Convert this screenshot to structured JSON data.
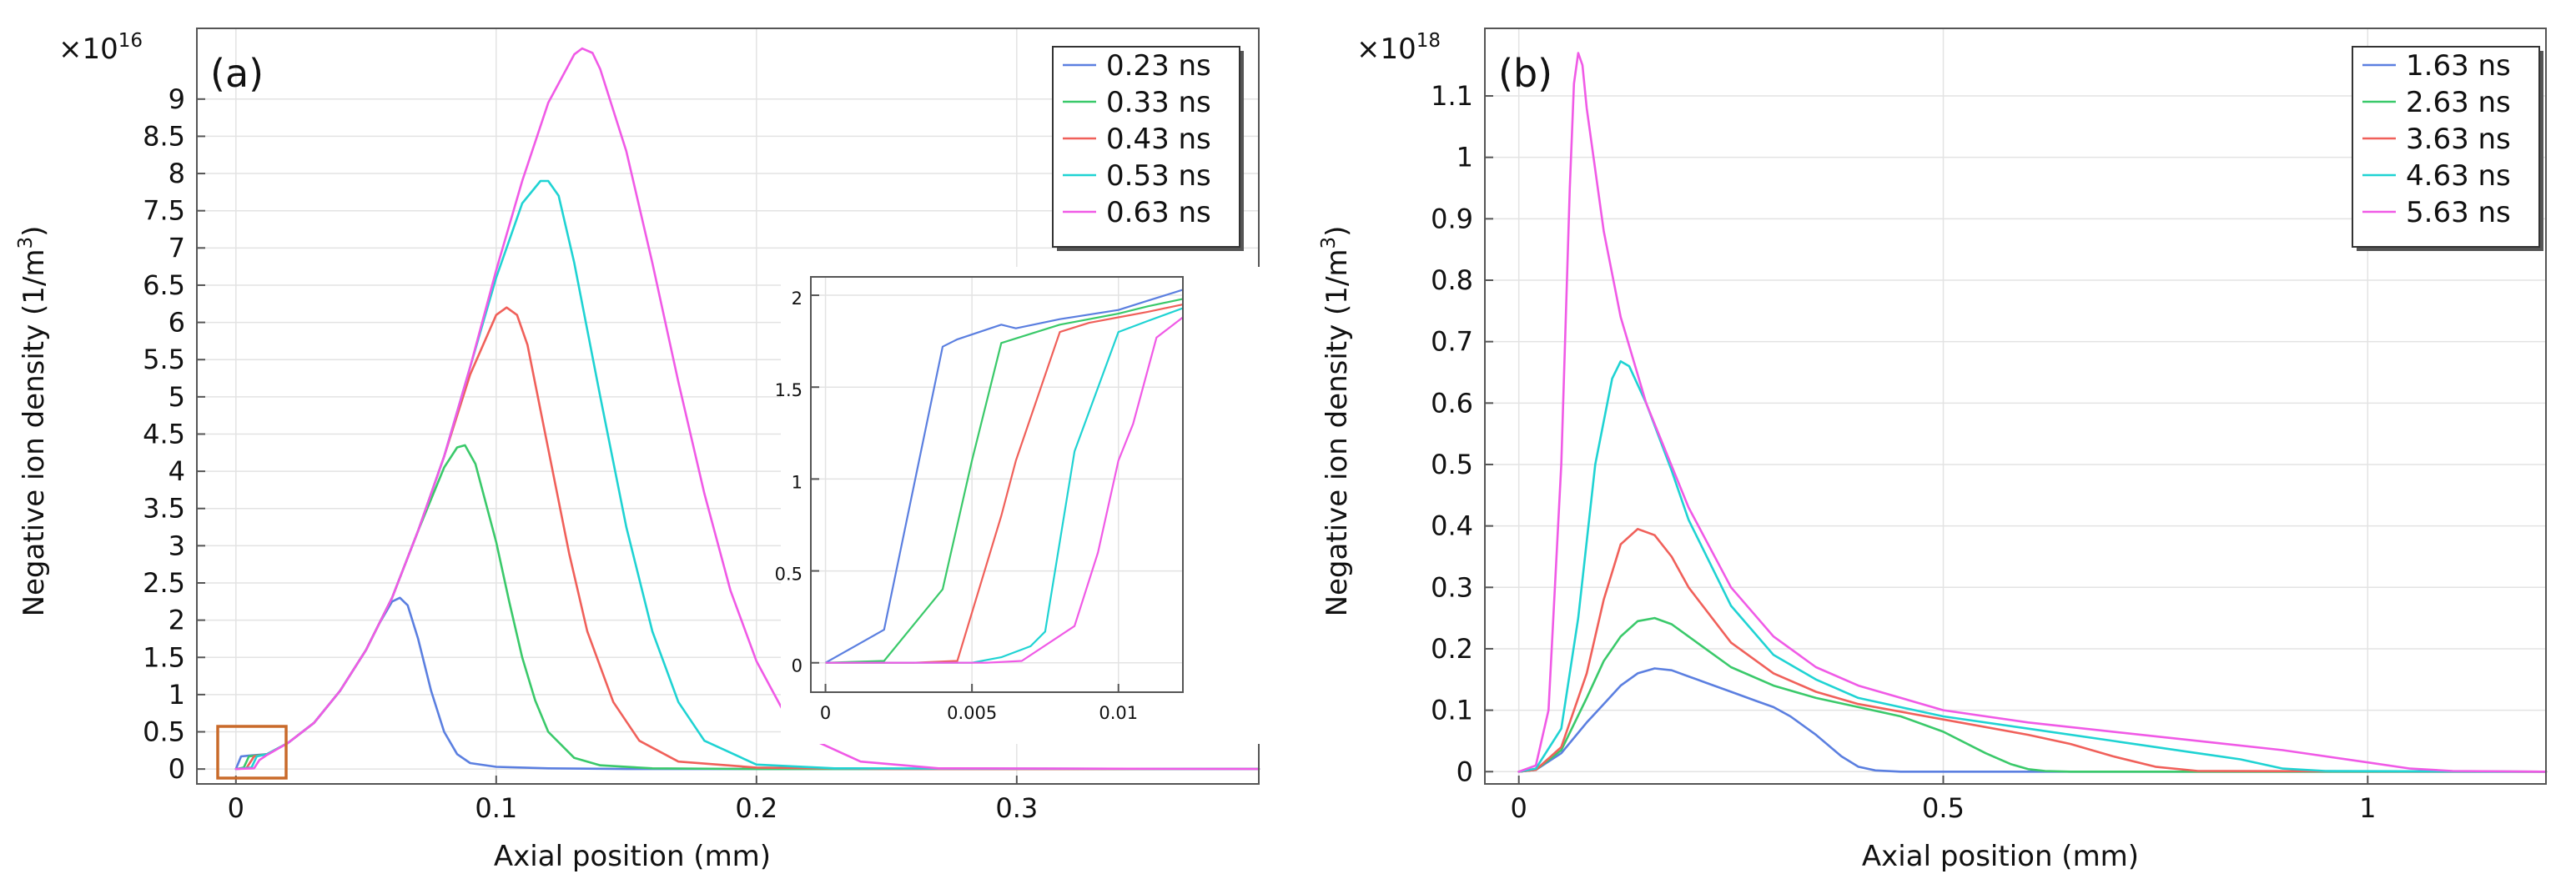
{
  "chart_data": [
    {
      "type": "line",
      "panel_label": "(a)",
      "xlabel": "Axial position (mm)",
      "ylabel_main": "Negative ion density (1/m",
      "ylabel_sup": "3",
      "ylabel_close": ")",
      "y_multiplier_base": "×10",
      "y_multiplier_exp": "16",
      "xlim": [
        -0.015,
        0.393
      ],
      "ylim": [
        -0.2,
        9.95
      ],
      "xticks": [
        0,
        0.1,
        0.2,
        0.3
      ],
      "xtick_labels": [
        "0",
        "0.1",
        "0.2",
        "0.3"
      ],
      "yticks": [
        0,
        0.5,
        1,
        1.5,
        2,
        2.5,
        3,
        3.5,
        4,
        4.5,
        5,
        5.5,
        6,
        6.5,
        7,
        7.5,
        8,
        8.5,
        9
      ],
      "ytick_labels": [
        "0",
        "0.5",
        "1",
        "1.5",
        "2",
        "2.5",
        "3",
        "3.5",
        "4",
        "4.5",
        "5",
        "5.5",
        "6",
        "6.5",
        "7",
        "7.5",
        "8",
        "8.5",
        "9"
      ],
      "grid": true,
      "legend_position": "top-right",
      "series": [
        {
          "name": "0.23 ns",
          "color": "#5b7fe0",
          "x": [
            0,
            0.002,
            0.005,
            0.012,
            0.02,
            0.03,
            0.04,
            0.05,
            0.055,
            0.06,
            0.063,
            0.066,
            0.07,
            0.075,
            0.08,
            0.085,
            0.09,
            0.1,
            0.12,
            0.15,
            0.2,
            0.393
          ],
          "y": [
            0,
            0.17,
            0.18,
            0.2,
            0.35,
            0.62,
            1.05,
            1.6,
            1.95,
            2.25,
            2.3,
            2.2,
            1.75,
            1.05,
            0.5,
            0.2,
            0.08,
            0.03,
            0.01,
            0,
            0,
            0
          ]
        },
        {
          "name": "0.33 ns",
          "color": "#3ac96a",
          "x": [
            0,
            0.003,
            0.005,
            0.012,
            0.02,
            0.03,
            0.04,
            0.05,
            0.06,
            0.07,
            0.08,
            0.085,
            0.088,
            0.092,
            0.1,
            0.105,
            0.11,
            0.115,
            0.12,
            0.13,
            0.14,
            0.16,
            0.2,
            0.393
          ],
          "y": [
            0,
            0.02,
            0.17,
            0.2,
            0.35,
            0.62,
            1.05,
            1.6,
            2.3,
            3.2,
            4.05,
            4.32,
            4.35,
            4.1,
            3.05,
            2.25,
            1.5,
            0.92,
            0.5,
            0.15,
            0.05,
            0.01,
            0,
            0
          ]
        },
        {
          "name": "0.43 ns",
          "color": "#f0605a",
          "x": [
            0,
            0.004,
            0.007,
            0.012,
            0.02,
            0.03,
            0.04,
            0.05,
            0.06,
            0.07,
            0.08,
            0.09,
            0.1,
            0.104,
            0.108,
            0.112,
            0.12,
            0.128,
            0.135,
            0.145,
            0.155,
            0.17,
            0.2,
            0.25,
            0.393
          ],
          "y": [
            0,
            0.01,
            0.17,
            0.2,
            0.35,
            0.62,
            1.05,
            1.6,
            2.3,
            3.2,
            4.2,
            5.3,
            6.1,
            6.2,
            6.1,
            5.7,
            4.3,
            2.9,
            1.85,
            0.9,
            0.38,
            0.1,
            0.02,
            0,
            0
          ]
        },
        {
          "name": "0.53 ns",
          "color": "#1fd3d3",
          "x": [
            0,
            0.006,
            0.008,
            0.012,
            0.02,
            0.03,
            0.04,
            0.05,
            0.06,
            0.07,
            0.08,
            0.09,
            0.1,
            0.11,
            0.117,
            0.12,
            0.124,
            0.13,
            0.14,
            0.15,
            0.16,
            0.17,
            0.18,
            0.2,
            0.23,
            0.393
          ],
          "y": [
            0,
            0.02,
            0.17,
            0.2,
            0.35,
            0.62,
            1.05,
            1.6,
            2.3,
            3.2,
            4.2,
            5.4,
            6.6,
            7.6,
            7.9,
            7.9,
            7.7,
            6.8,
            5.0,
            3.25,
            1.85,
            0.9,
            0.38,
            0.06,
            0.01,
            0
          ]
        },
        {
          "name": "0.63 ns",
          "color": "#f05ae6",
          "x": [
            0,
            0.007,
            0.009,
            0.012,
            0.02,
            0.03,
            0.04,
            0.05,
            0.06,
            0.07,
            0.08,
            0.09,
            0.1,
            0.11,
            0.12,
            0.13,
            0.133,
            0.137,
            0.14,
            0.15,
            0.16,
            0.17,
            0.18,
            0.19,
            0.2,
            0.21,
            0.22,
            0.24,
            0.27,
            0.393
          ],
          "y": [
            0,
            0.01,
            0.12,
            0.19,
            0.35,
            0.62,
            1.05,
            1.6,
            2.3,
            3.2,
            4.2,
            5.4,
            6.7,
            7.9,
            8.95,
            9.6,
            9.68,
            9.62,
            9.4,
            8.3,
            6.8,
            5.2,
            3.7,
            2.4,
            1.45,
            0.8,
            0.42,
            0.1,
            0.01,
            0
          ]
        }
      ],
      "inset": {
        "xlim": [
          -0.0005,
          0.0122
        ],
        "ylim": [
          -0.16,
          2.1
        ],
        "xticks": [
          0,
          0.005,
          0.01
        ],
        "xtick_labels": [
          "0",
          "0.005",
          "0.01"
        ],
        "yticks": [
          0,
          0.5,
          1,
          1.5,
          2
        ],
        "ytick_labels": [
          "0",
          "0.5",
          "1",
          "1.5",
          "2"
        ],
        "series": [
          {
            "name": "0.23 ns",
            "color": "#5b7fe0",
            "x": [
              0,
              0.001,
              0.002,
              0.003,
              0.004,
              0.0045,
              0.006,
              0.0065,
              0.008,
              0.01,
              0.011,
              0.0122
            ],
            "y": [
              0,
              0.09,
              0.18,
              0.95,
              1.72,
              1.76,
              1.84,
              1.82,
              1.87,
              1.92,
              1.97,
              2.03
            ]
          },
          {
            "name": "0.33 ns",
            "color": "#3ac96a",
            "x": [
              0,
              0.002,
              0.004,
              0.005,
              0.006,
              0.008,
              0.01,
              0.011,
              0.0122
            ],
            "y": [
              0,
              0.01,
              0.4,
              1.1,
              1.74,
              1.84,
              1.9,
              1.94,
              1.98
            ]
          },
          {
            "name": "0.43 ns",
            "color": "#f0605a",
            "x": [
              0,
              0.003,
              0.0045,
              0.006,
              0.0065,
              0.008,
              0.009,
              0.01,
              0.011,
              0.0122
            ],
            "y": [
              0,
              0,
              0.01,
              0.8,
              1.1,
              1.8,
              1.85,
              1.88,
              1.91,
              1.95
            ]
          },
          {
            "name": "0.53 ns",
            "color": "#1fd3d3",
            "x": [
              0,
              0.005,
              0.006,
              0.007,
              0.0075,
              0.0085,
              0.01,
              0.011,
              0.0122
            ],
            "y": [
              0,
              0,
              0.03,
              0.09,
              0.17,
              1.15,
              1.8,
              1.86,
              1.93
            ]
          },
          {
            "name": "0.63 ns",
            "color": "#f05ae6",
            "x": [
              0,
              0.0055,
              0.0067,
              0.0085,
              0.0093,
              0.01,
              0.0105,
              0.0113,
              0.0122
            ],
            "y": [
              0,
              0,
              0.01,
              0.2,
              0.6,
              1.1,
              1.3,
              1.77,
              1.88
            ]
          }
        ]
      }
    },
    {
      "type": "line",
      "panel_label": "(b)",
      "xlabel": "Axial position (mm)",
      "ylabel_main": "Negative ion density (1/m",
      "ylabel_sup": "3",
      "ylabel_close": ")",
      "y_multiplier_base": "×10",
      "y_multiplier_exp": "18",
      "xlim": [
        -0.04,
        1.21
      ],
      "ylim": [
        -0.02,
        1.21
      ],
      "xticks": [
        0,
        0.5,
        1
      ],
      "xtick_labels": [
        "0",
        "0.5",
        "1"
      ],
      "yticks": [
        0,
        0.1,
        0.2,
        0.3,
        0.4,
        0.5,
        0.6,
        0.7,
        0.8,
        0.9,
        1,
        1.1
      ],
      "ytick_labels": [
        "0",
        "0.1",
        "0.2",
        "0.3",
        "0.4",
        "0.5",
        "0.6",
        "0.7",
        "0.8",
        "0.9",
        "1",
        "1.1"
      ],
      "grid": true,
      "legend_position": "top-right",
      "series": [
        {
          "name": "1.63 ns",
          "color": "#5b7fe0",
          "x": [
            0,
            0.02,
            0.05,
            0.08,
            0.1,
            0.12,
            0.14,
            0.16,
            0.18,
            0.2,
            0.22,
            0.25,
            0.28,
            0.3,
            0.32,
            0.35,
            0.38,
            0.4,
            0.42,
            0.45,
            0.5,
            1.21
          ],
          "y": [
            0,
            0.003,
            0.03,
            0.08,
            0.11,
            0.14,
            0.16,
            0.168,
            0.165,
            0.155,
            0.145,
            0.13,
            0.115,
            0.105,
            0.09,
            0.06,
            0.025,
            0.008,
            0.002,
            0,
            0,
            0
          ]
        },
        {
          "name": "2.63 ns",
          "color": "#3ac96a",
          "x": [
            0,
            0.02,
            0.05,
            0.08,
            0.1,
            0.12,
            0.14,
            0.16,
            0.18,
            0.2,
            0.25,
            0.3,
            0.35,
            0.4,
            0.45,
            0.5,
            0.55,
            0.58,
            0.6,
            0.62,
            0.65,
            1.21
          ],
          "y": [
            0,
            0.003,
            0.035,
            0.12,
            0.18,
            0.22,
            0.245,
            0.25,
            0.24,
            0.22,
            0.17,
            0.14,
            0.12,
            0.105,
            0.09,
            0.065,
            0.03,
            0.012,
            0.004,
            0.001,
            0,
            0
          ]
        },
        {
          "name": "3.63 ns",
          "color": "#f0605a",
          "x": [
            0,
            0.02,
            0.05,
            0.08,
            0.1,
            0.12,
            0.14,
            0.16,
            0.18,
            0.2,
            0.25,
            0.3,
            0.35,
            0.4,
            0.5,
            0.6,
            0.65,
            0.7,
            0.75,
            0.8,
            1.21
          ],
          "y": [
            0,
            0.003,
            0.04,
            0.16,
            0.28,
            0.37,
            0.395,
            0.385,
            0.35,
            0.3,
            0.21,
            0.16,
            0.13,
            0.11,
            0.085,
            0.06,
            0.045,
            0.025,
            0.008,
            0.001,
            0
          ]
        },
        {
          "name": "4.63 ns",
          "color": "#1fd3d3",
          "x": [
            0,
            0.02,
            0.05,
            0.07,
            0.09,
            0.11,
            0.12,
            0.13,
            0.15,
            0.18,
            0.2,
            0.25,
            0.3,
            0.35,
            0.4,
            0.5,
            0.6,
            0.7,
            0.8,
            0.85,
            0.9,
            0.95,
            1.21
          ],
          "y": [
            0,
            0.005,
            0.07,
            0.25,
            0.5,
            0.64,
            0.668,
            0.66,
            0.6,
            0.49,
            0.41,
            0.27,
            0.19,
            0.15,
            0.12,
            0.09,
            0.07,
            0.05,
            0.03,
            0.02,
            0.005,
            0.001,
            0
          ]
        },
        {
          "name": "5.63 ns",
          "color": "#f05ae6",
          "x": [
            0,
            0.02,
            0.035,
            0.05,
            0.06,
            0.065,
            0.07,
            0.075,
            0.08,
            0.1,
            0.12,
            0.15,
            0.2,
            0.25,
            0.3,
            0.35,
            0.4,
            0.5,
            0.6,
            0.7,
            0.8,
            0.9,
            1,
            1.05,
            1.1,
            1.21
          ],
          "y": [
            0,
            0.01,
            0.1,
            0.5,
            0.95,
            1.12,
            1.17,
            1.15,
            1.08,
            0.88,
            0.74,
            0.6,
            0.43,
            0.3,
            0.22,
            0.17,
            0.14,
            0.1,
            0.08,
            0.065,
            0.05,
            0.035,
            0.015,
            0.005,
            0.001,
            0
          ]
        }
      ]
    }
  ]
}
